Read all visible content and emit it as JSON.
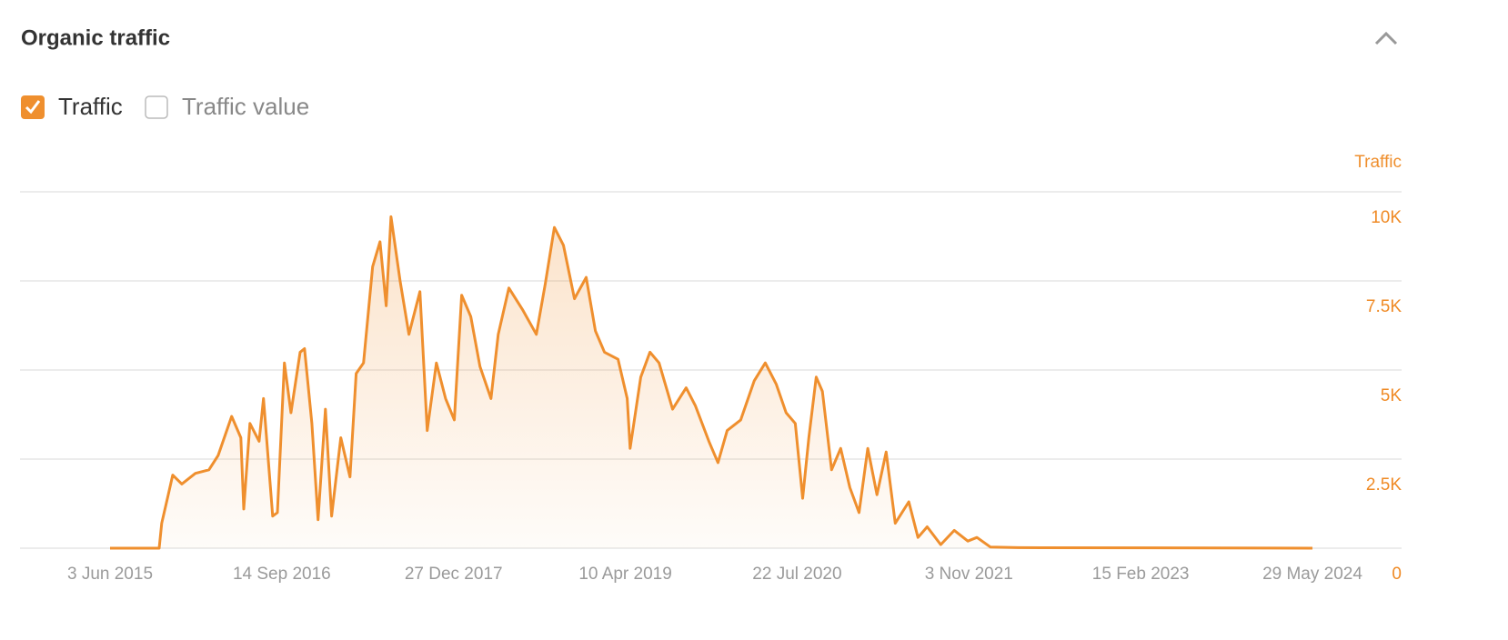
{
  "header": {
    "title": "Organic traffic"
  },
  "toggles": [
    {
      "label": "Traffic",
      "checked": true
    },
    {
      "label": "Traffic value",
      "checked": false
    }
  ],
  "chart_data": {
    "type": "area",
    "y_label": "Traffic",
    "color": "#ef8f2e",
    "grid": true,
    "y_axis_side": "right",
    "x": [
      "2015-06-03",
      "2015-10-15",
      "2015-10-22",
      "2015-11-09",
      "2015-11-21",
      "2015-12-16",
      "2016-01-22",
      "2016-02-28",
      "2016-03-24",
      "2016-04-30",
      "2016-05-25",
      "2016-06-02",
      "2016-06-19",
      "2016-07-14",
      "2016-07-26",
      "2016-08-20",
      "2016-09-02",
      "2016-09-21",
      "2016-10-09",
      "2016-11-03",
      "2016-11-15",
      "2016-12-05",
      "2016-12-22",
      "2017-01-11",
      "2017-01-28",
      "2017-02-22",
      "2017-03-19",
      "2017-04-05",
      "2017-04-25",
      "2017-05-20",
      "2017-06-09",
      "2017-06-26",
      "2017-07-09",
      "2017-08-03",
      "2017-08-27",
      "2017-09-26",
      "2017-10-16",
      "2017-11-10",
      "2017-12-05",
      "2017-12-29",
      "2018-01-18",
      "2018-02-12",
      "2018-03-09",
      "2018-04-08",
      "2018-04-28",
      "2018-05-27",
      "2018-07-03",
      "2018-08-10",
      "2018-09-03",
      "2018-09-28",
      "2018-10-23",
      "2018-11-22",
      "2018-12-24",
      "2019-01-18",
      "2019-02-12",
      "2019-03-21",
      "2019-04-15",
      "2019-04-23",
      "2019-05-22",
      "2019-06-16",
      "2019-07-11",
      "2019-08-17",
      "2019-09-23",
      "2019-10-18",
      "2019-11-24",
      "2019-12-19",
      "2020-01-13",
      "2020-02-19",
      "2020-03-27",
      "2020-04-26",
      "2020-05-26",
      "2020-06-22",
      "2020-07-17",
      "2020-08-06",
      "2020-08-23",
      "2020-09-12",
      "2020-09-29",
      "2020-10-24",
      "2020-11-18",
      "2020-12-13",
      "2021-01-07",
      "2021-01-31",
      "2021-02-25",
      "2021-03-22",
      "2021-04-16",
      "2021-05-23",
      "2021-06-17",
      "2021-07-12",
      "2021-08-18",
      "2021-09-24",
      "2021-10-31",
      "2021-11-25",
      "2022-01-01",
      "2022-03-17",
      "2024-05-29"
    ],
    "values": [
      0,
      0,
      700,
      1500,
      2050,
      1800,
      2100,
      2200,
      2600,
      3700,
      3100,
      1100,
      3500,
      3000,
      4200,
      900,
      1000,
      5200,
      3800,
      5500,
      5600,
      3500,
      800,
      3900,
      900,
      3100,
      2000,
      4900,
      5200,
      7900,
      8600,
      6800,
      9300,
      7500,
      6000,
      7200,
      3300,
      5200,
      4200,
      3600,
      7100,
      6500,
      5100,
      4200,
      6000,
      7300,
      6700,
      6000,
      7400,
      9000,
      8500,
      7000,
      7600,
      6100,
      5500,
      5300,
      4200,
      2800,
      4800,
      5500,
      5200,
      3900,
      4500,
      4000,
      3000,
      2400,
      3300,
      3600,
      4700,
      5200,
      4600,
      3800,
      3500,
      1400,
      3100,
      4800,
      4400,
      2200,
      2800,
      1700,
      1000,
      2800,
      1500,
      2700,
      700,
      1300,
      300,
      600,
      100,
      500,
      200,
      300,
      30,
      15,
      0
    ],
    "xlim": [
      "2015-06-03",
      "2024-05-29"
    ],
    "xticks": [
      {
        "value": "2015-06-03",
        "label": "3 Jun 2015"
      },
      {
        "value": "2016-09-14",
        "label": "14 Sep 2016"
      },
      {
        "value": "2017-12-27",
        "label": "27 Dec 2017"
      },
      {
        "value": "2019-04-10",
        "label": "10 Apr 2019"
      },
      {
        "value": "2020-07-22",
        "label": "22 Jul 2020"
      },
      {
        "value": "2021-11-03",
        "label": "3 Nov 2021"
      },
      {
        "value": "2023-02-15",
        "label": "15 Feb 2023"
      },
      {
        "value": "2024-05-29",
        "label": "29 May 2024"
      }
    ],
    "ylim": [
      0,
      10000
    ],
    "yticks": [
      0,
      {
        "value": 2500,
        "label": "2.5K"
      },
      {
        "value": 5000,
        "label": "5K"
      },
      {
        "value": 7500,
        "label": "7.5K"
      },
      {
        "value": 10000,
        "label": "10K"
      }
    ]
  }
}
